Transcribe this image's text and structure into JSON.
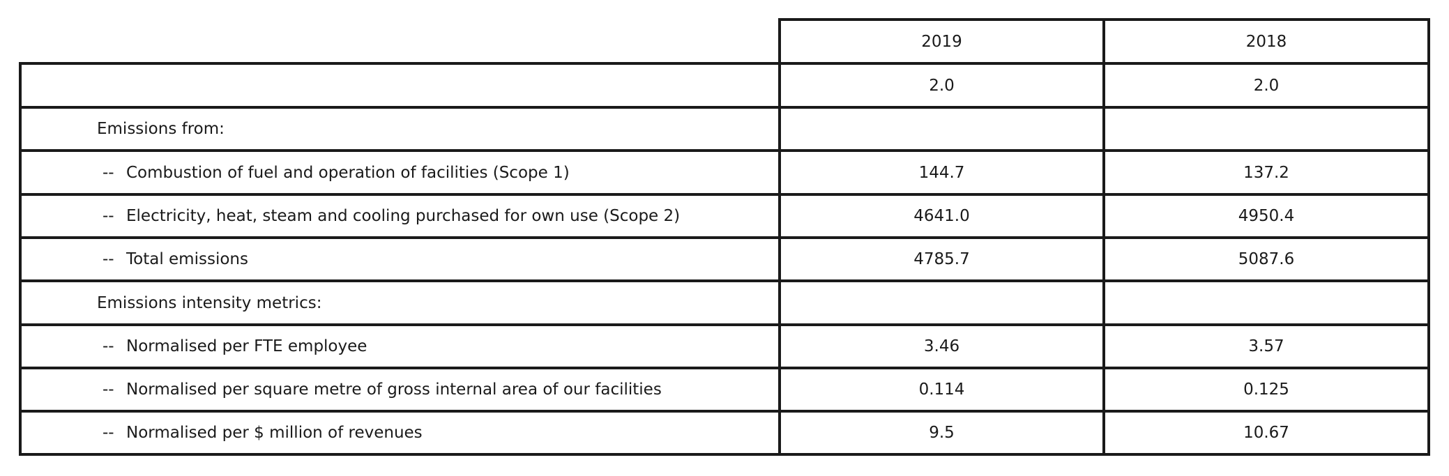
{
  "table": {
    "header": {
      "label": "",
      "col_2019": "2019",
      "col_2018": "2018"
    },
    "rows": [
      {
        "kind": "plain",
        "dash": "",
        "label": "",
        "v2019": "2.0",
        "v2018": "2.0"
      },
      {
        "kind": "heading",
        "dash": "",
        "label": "Emissions from:",
        "v2019": "",
        "v2018": ""
      },
      {
        "kind": "item",
        "dash": "--",
        "label": "Combustion of fuel and operation of facilities (Scope 1)",
        "v2019": "144.7",
        "v2018": "137.2"
      },
      {
        "kind": "item",
        "dash": "--",
        "label": "Electricity, heat, steam and cooling purchased for own use (Scope 2)",
        "v2019": "4641.0",
        "v2018": "4950.4"
      },
      {
        "kind": "item",
        "dash": "--",
        "label": "Total emissions",
        "v2019": "4785.7",
        "v2018": "5087.6"
      },
      {
        "kind": "heading",
        "dash": "",
        "label": "Emissions intensity metrics:",
        "v2019": "",
        "v2018": ""
      },
      {
        "kind": "item",
        "dash": "--",
        "label": "Normalised per FTE employee",
        "v2019": "3.46",
        "v2018": "3.57"
      },
      {
        "kind": "item",
        "dash": "--",
        "label": "Normalised per square metre of gross internal area of our facilities",
        "v2019": "0.114",
        "v2018": "0.125"
      },
      {
        "kind": "item",
        "dash": "--",
        "label": "Normalised per $ million of revenues",
        "v2019": "9.5",
        "v2018": "10.67"
      }
    ]
  }
}
